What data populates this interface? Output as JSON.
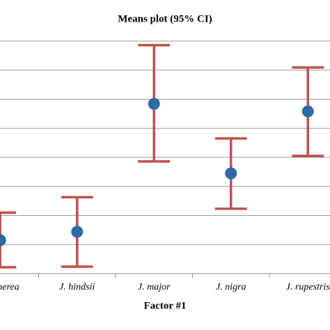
{
  "chart_data": {
    "type": "errorbar",
    "title": "Means plot (95% CI)",
    "x_label": "Factor #1",
    "categories": [
      "J. cinerea",
      "J. hindsii",
      "J. major",
      "J. nigra",
      "J. rupestris"
    ],
    "values": [
      1.15,
      1.44,
      5.84,
      3.45,
      5.58
    ],
    "lower": [
      0.22,
      0.24,
      3.86,
      2.23,
      4.05
    ],
    "upper": [
      2.1,
      2.63,
      7.86,
      4.65,
      7.09
    ],
    "color": "#2e6aa6",
    "error_color": "#c0504d",
    "ylim": [
      0,
      8
    ],
    "yticks": [
      0,
      1,
      2,
      3,
      4,
      5,
      6,
      7,
      8
    ],
    "grid": true
  }
}
